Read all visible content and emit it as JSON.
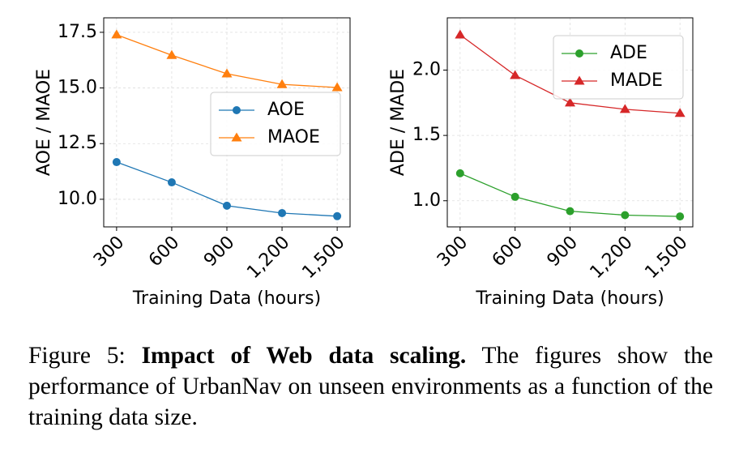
{
  "chart_data": [
    {
      "type": "line",
      "ylabel": "AOE / MAOE",
      "xlabel": "Training Data (hours)",
      "x": [
        300,
        600,
        900,
        1200,
        1500
      ],
      "series": [
        {
          "name": "AOE",
          "color": "#1f77b4",
          "marker": "circle",
          "values": [
            11.67,
            10.76,
            9.71,
            9.38,
            9.24
          ]
        },
        {
          "name": "MAOE",
          "color": "#ff7f0e",
          "marker": "triangle",
          "values": [
            17.39,
            16.47,
            15.64,
            15.16,
            15.02
          ]
        }
      ],
      "xlim": [
        230,
        1570
      ],
      "xticks": [
        300,
        600,
        900,
        {
          "value": 1200,
          "label": "1,200"
        },
        {
          "value": 1500,
          "label": "1,500"
        }
      ],
      "ylim": [
        8.76,
        18.15
      ],
      "yticks": [
        10.0,
        12.5,
        15.0,
        17.5
      ],
      "grid": true,
      "legend": "center right"
    },
    {
      "type": "line",
      "ylabel": "ADE / MADE",
      "xlabel": "Training Data (hours)",
      "x": [
        300,
        600,
        900,
        1200,
        1500
      ],
      "series": [
        {
          "name": "ADE",
          "color": "#2ca02c",
          "marker": "circle",
          "values": [
            1.21,
            1.03,
            0.92,
            0.89,
            0.88
          ]
        },
        {
          "name": "MADE",
          "color": "#d62728",
          "marker": "triangle",
          "values": [
            2.27,
            1.96,
            1.75,
            1.7,
            1.67
          ]
        }
      ],
      "xlim": [
        230,
        1570
      ],
      "xticks": [
        300,
        600,
        900,
        {
          "value": 1200,
          "label": "1,200"
        },
        {
          "value": 1500,
          "label": "1,500"
        }
      ],
      "ylim": [
        0.8,
        2.4
      ],
      "yticks": [
        1.0,
        1.5,
        2.0
      ],
      "grid": true,
      "legend": "upper right"
    }
  ],
  "caption": {
    "label": "Figure 5:",
    "title": "Impact of Web data scaling.",
    "text": "The figures show the performance of UrbanNav on unseen environments as a function of the training data size."
  }
}
